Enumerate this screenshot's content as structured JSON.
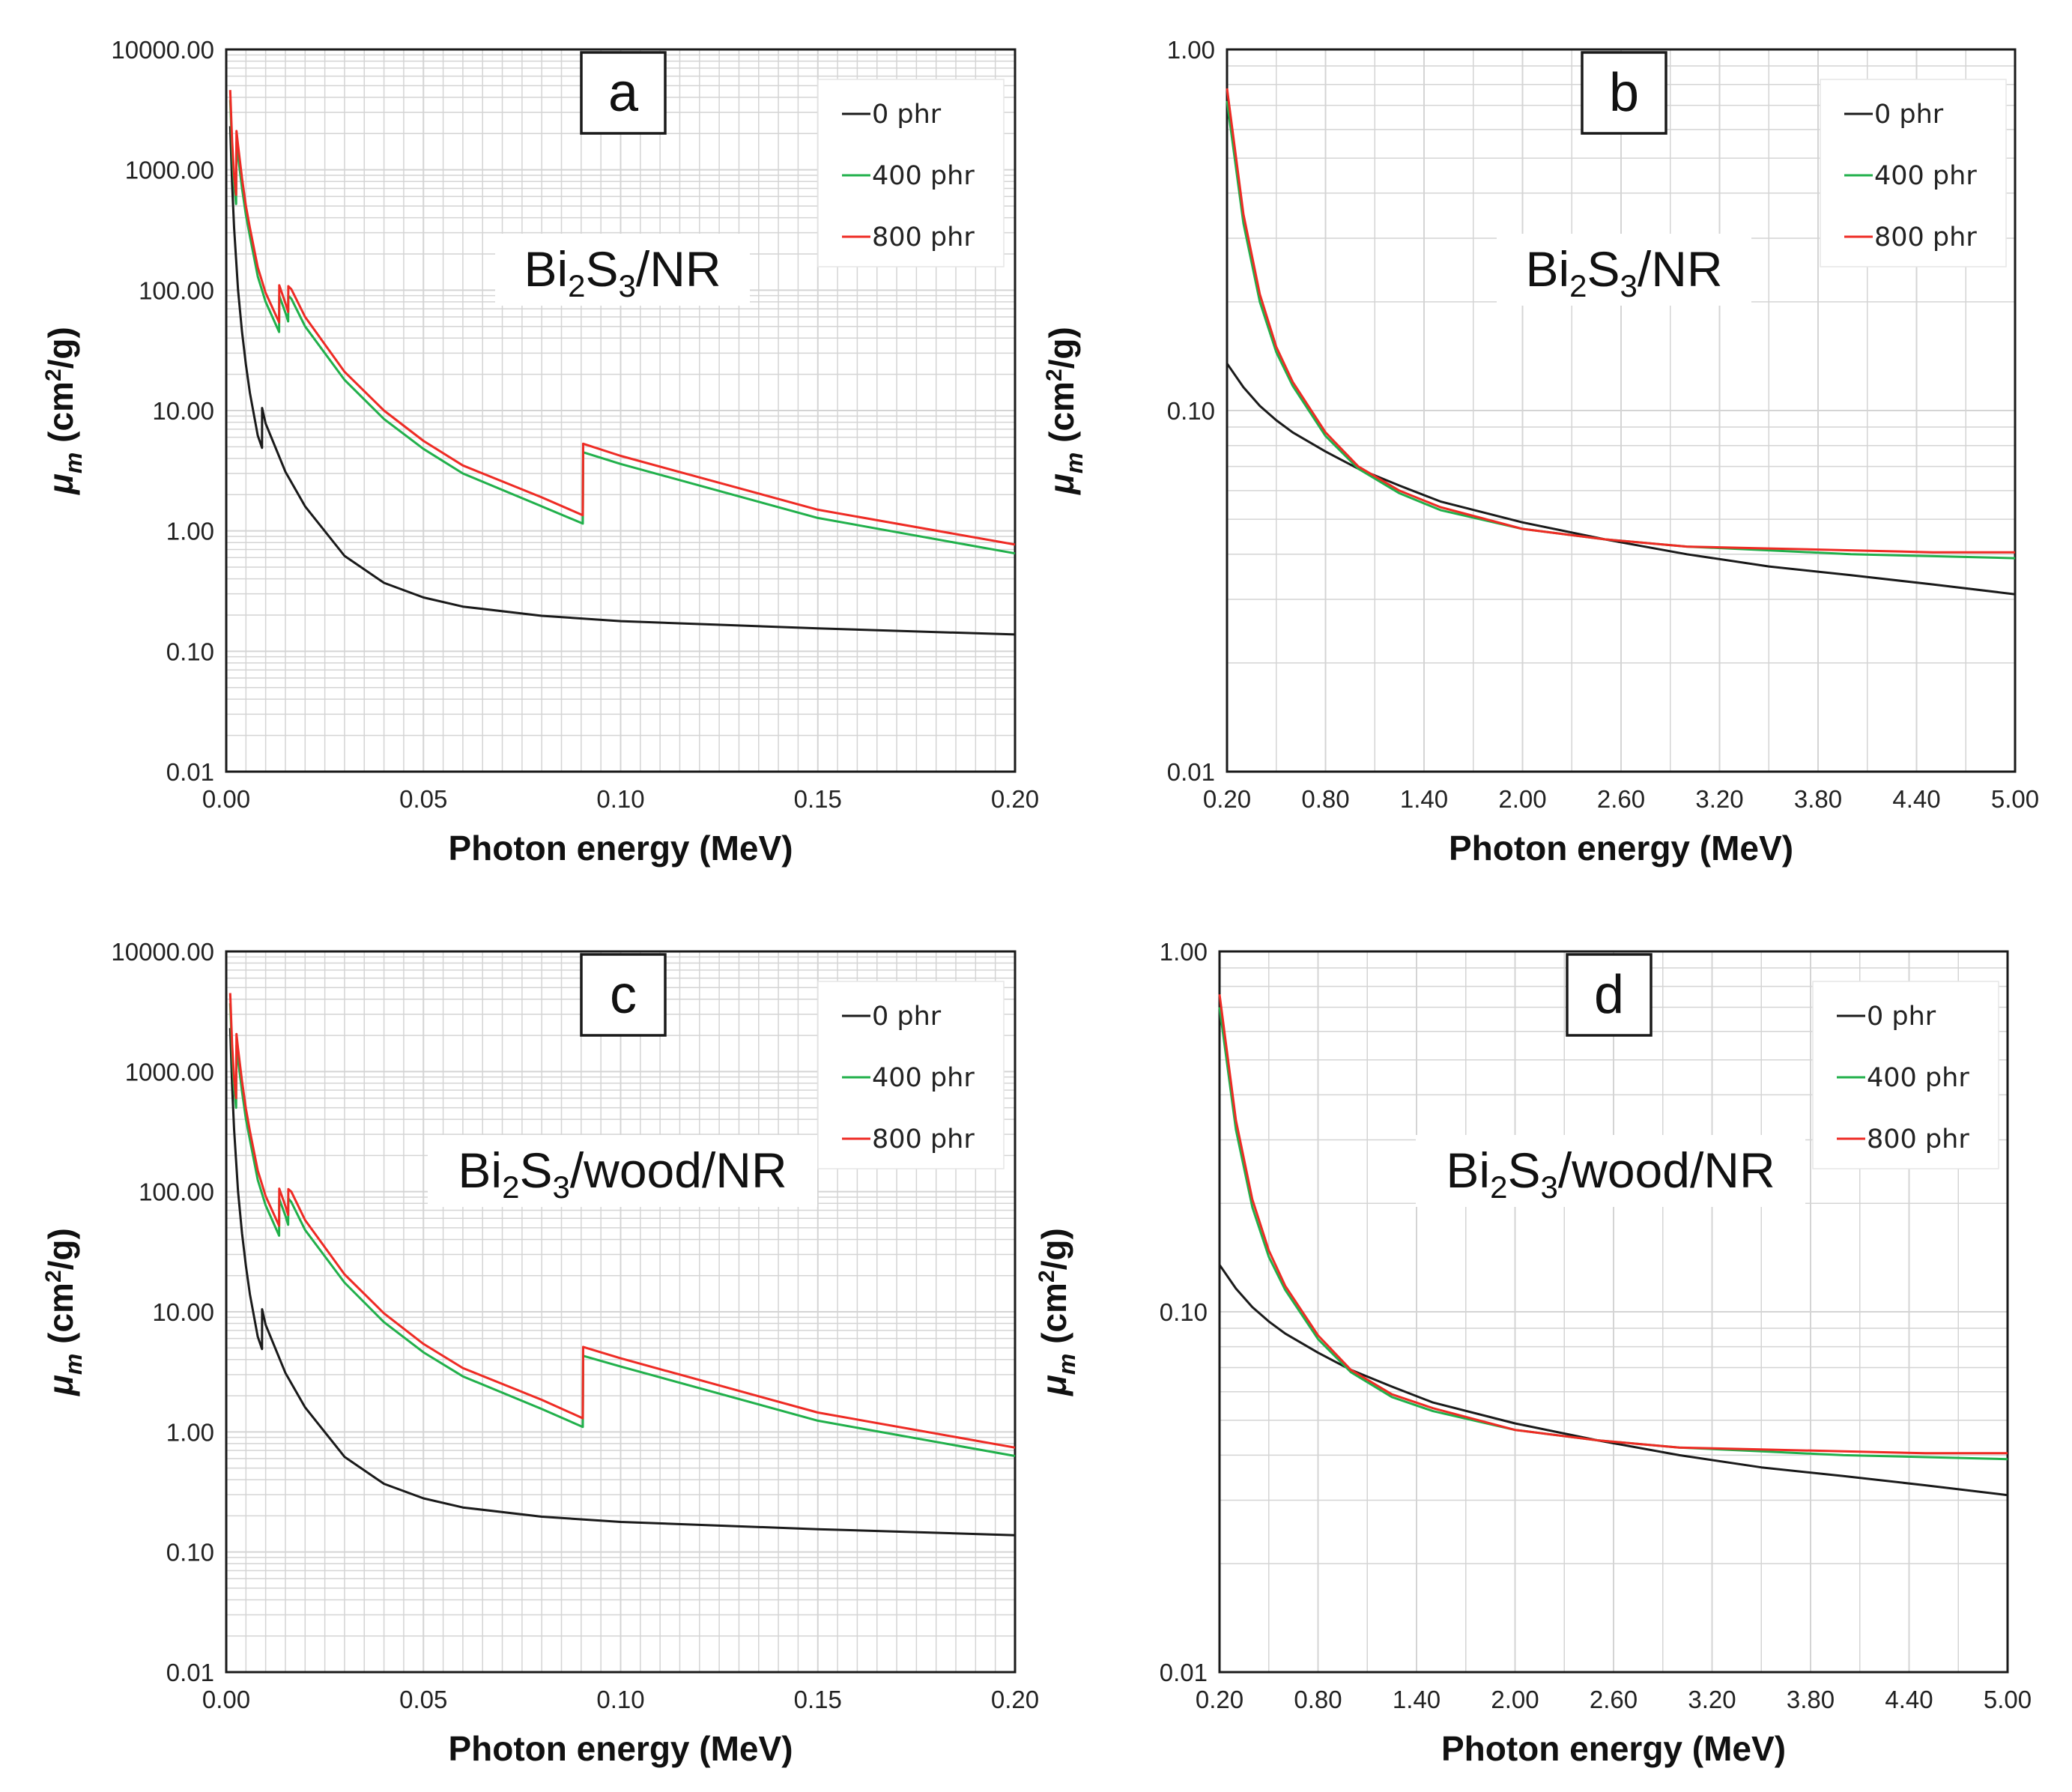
{
  "figure": {
    "y_axis_label_main": "μ",
    "y_axis_label_sub": "m",
    "y_axis_label_unit_pre": " (cm",
    "y_axis_label_unit_sup": "2",
    "y_axis_label_unit_post": "/g)"
  },
  "colors": {
    "phr0": "#1a1a1a",
    "phr400": "#21b04b",
    "phr800": "#ee2b24",
    "grid": "#d4d4d4"
  },
  "chart_data": [
    {
      "panel": "a",
      "type": "line",
      "yscale": "log",
      "material_parts": [
        "Bi",
        "2",
        "S",
        "3",
        "/NR"
      ],
      "xlabel": "Photon energy (MeV)",
      "xlim": [
        0,
        0.2
      ],
      "ylim": [
        0.01,
        10000
      ],
      "xticks": [
        "0.00",
        "0.05",
        "0.10",
        "0.15",
        "0.20"
      ],
      "yticks": [
        "0.01",
        "0.10",
        "1.00",
        "10.00",
        "100.00",
        "1000.00",
        "10000.00"
      ],
      "legend": [
        "0 phr",
        "400 phr",
        "800 phr"
      ],
      "series": [
        {
          "name": "0 phr",
          "color_key": "phr0",
          "x": [
            0.001,
            0.0015,
            0.002,
            0.003,
            0.004,
            0.005,
            0.006,
            0.008,
            0.00907,
            0.0091,
            0.01,
            0.015,
            0.02,
            0.03,
            0.04,
            0.05,
            0.06,
            0.08,
            0.1,
            0.15,
            0.2
          ],
          "y": [
            2300,
            750,
            330,
            100,
            45,
            24,
            14,
            6.2,
            4.9,
            10.5,
            7.8,
            3.1,
            1.6,
            0.62,
            0.37,
            0.28,
            0.235,
            0.197,
            0.178,
            0.155,
            0.138
          ]
        },
        {
          "name": "400 phr",
          "color_key": "phr400",
          "x": [
            0.001,
            0.0015,
            0.002,
            0.0025,
            0.0026,
            0.003,
            0.004,
            0.005,
            0.006,
            0.008,
            0.01,
            0.0134,
            0.01345,
            0.015,
            0.0157,
            0.01575,
            0.0165,
            0.02,
            0.03,
            0.04,
            0.05,
            0.06,
            0.08,
            0.0904,
            0.0905,
            0.1,
            0.15,
            0.2
          ],
          "y": [
            3800,
            1400,
            750,
            520,
            1700,
            1300,
            700,
            420,
            280,
            130,
            80,
            45,
            90,
            65,
            55,
            90,
            85,
            50,
            18,
            8.5,
            4.8,
            3.0,
            1.6,
            1.15,
            4.5,
            3.6,
            1.28,
            0.65
          ]
        },
        {
          "name": "800 phr",
          "color_key": "phr800",
          "x": [
            0.001,
            0.0015,
            0.002,
            0.0025,
            0.0026,
            0.003,
            0.004,
            0.005,
            0.006,
            0.008,
            0.01,
            0.0134,
            0.01345,
            0.015,
            0.0157,
            0.01575,
            0.0165,
            0.02,
            0.03,
            0.04,
            0.05,
            0.06,
            0.08,
            0.0904,
            0.0905,
            0.1,
            0.15,
            0.2
          ],
          "y": [
            4600,
            1700,
            900,
            620,
            2100,
            1600,
            850,
            500,
            330,
            155,
            95,
            54,
            110,
            78,
            66,
            108,
            102,
            60,
            21,
            10,
            5.6,
            3.5,
            1.9,
            1.35,
            5.3,
            4.2,
            1.5,
            0.77
          ]
        }
      ]
    },
    {
      "panel": "b",
      "type": "line",
      "yscale": "log",
      "material_parts": [
        "Bi",
        "2",
        "S",
        "3",
        "/NR"
      ],
      "xlabel": "Photon energy (MeV)",
      "xlim": [
        0.2,
        5.0
      ],
      "ylim": [
        0.01,
        1.0
      ],
      "xticks": [
        "0.20",
        "0.80",
        "1.40",
        "2.00",
        "2.60",
        "3.20",
        "3.80",
        "4.40",
        "5.00"
      ],
      "yticks": [
        "0.01",
        "0.10",
        "1.00"
      ],
      "legend": [
        "0 phr",
        "400 phr",
        "800 phr"
      ],
      "series": [
        {
          "name": "0 phr",
          "color_key": "phr0",
          "x": [
            0.2,
            0.3,
            0.4,
            0.5,
            0.6,
            0.8,
            1.0,
            1.25,
            1.5,
            2.0,
            2.5,
            3.0,
            3.5,
            4.0,
            4.5,
            5.0
          ],
          "y": [
            0.135,
            0.116,
            0.103,
            0.094,
            0.087,
            0.077,
            0.069,
            0.062,
            0.056,
            0.049,
            0.044,
            0.04,
            0.037,
            0.035,
            0.033,
            0.031
          ]
        },
        {
          "name": "400 phr",
          "color_key": "phr400",
          "x": [
            0.2,
            0.3,
            0.4,
            0.5,
            0.6,
            0.8,
            1.0,
            1.25,
            1.5,
            2.0,
            2.5,
            3.0,
            3.5,
            4.0,
            4.5,
            5.0
          ],
          "y": [
            0.72,
            0.33,
            0.2,
            0.145,
            0.117,
            0.085,
            0.069,
            0.059,
            0.053,
            0.047,
            0.044,
            0.042,
            0.041,
            0.04,
            0.0395,
            0.039
          ]
        },
        {
          "name": "800 phr",
          "color_key": "phr800",
          "x": [
            0.2,
            0.3,
            0.4,
            0.5,
            0.6,
            0.8,
            1.0,
            1.25,
            1.5,
            2.0,
            2.5,
            3.0,
            3.5,
            4.0,
            4.5,
            5.0
          ],
          "y": [
            0.78,
            0.35,
            0.21,
            0.15,
            0.12,
            0.087,
            0.07,
            0.06,
            0.054,
            0.047,
            0.044,
            0.042,
            0.0415,
            0.041,
            0.0405,
            0.0405
          ]
        }
      ]
    },
    {
      "panel": "c",
      "type": "line",
      "yscale": "log",
      "material_parts": [
        "Bi",
        "2",
        "S",
        "3",
        "/wood/NR"
      ],
      "xlabel": "Photon energy (MeV)",
      "xlim": [
        0,
        0.2
      ],
      "ylim": [
        0.01,
        10000
      ],
      "xticks": [
        "0.00",
        "0.05",
        "0.10",
        "0.15",
        "0.20"
      ],
      "yticks": [
        "0.01",
        "0.10",
        "1.00",
        "10.00",
        "100.00",
        "1000.00",
        "10000.00"
      ],
      "legend": [
        "0 phr",
        "400 phr",
        "800 phr"
      ],
      "series": [
        {
          "name": "0 phr",
          "color_key": "phr0",
          "x": [
            0.001,
            0.0015,
            0.002,
            0.003,
            0.004,
            0.005,
            0.006,
            0.008,
            0.00907,
            0.0091,
            0.01,
            0.015,
            0.02,
            0.03,
            0.04,
            0.05,
            0.06,
            0.08,
            0.1,
            0.15,
            0.2
          ],
          "y": [
            2300,
            750,
            330,
            100,
            45,
            24,
            14,
            6.2,
            4.9,
            10.5,
            7.8,
            3.1,
            1.6,
            0.62,
            0.37,
            0.28,
            0.235,
            0.197,
            0.178,
            0.155,
            0.138
          ]
        },
        {
          "name": "400 phr",
          "color_key": "phr400",
          "x": [
            0.001,
            0.0015,
            0.002,
            0.0025,
            0.0026,
            0.003,
            0.004,
            0.005,
            0.006,
            0.008,
            0.01,
            0.0134,
            0.01345,
            0.015,
            0.0157,
            0.01575,
            0.0165,
            0.02,
            0.03,
            0.04,
            0.05,
            0.06,
            0.08,
            0.0904,
            0.0905,
            0.1,
            0.15,
            0.2
          ],
          "y": [
            3700,
            1350,
            720,
            500,
            1650,
            1250,
            680,
            400,
            270,
            125,
            77,
            43,
            87,
            63,
            53,
            88,
            82,
            48,
            17.5,
            8.2,
            4.6,
            2.9,
            1.55,
            1.1,
            4.3,
            3.5,
            1.24,
            0.63
          ]
        },
        {
          "name": "800 phr",
          "color_key": "phr800",
          "x": [
            0.001,
            0.0015,
            0.002,
            0.0025,
            0.0026,
            0.003,
            0.004,
            0.005,
            0.006,
            0.008,
            0.01,
            0.0134,
            0.01345,
            0.015,
            0.0157,
            0.01575,
            0.0165,
            0.02,
            0.03,
            0.04,
            0.05,
            0.06,
            0.08,
            0.0904,
            0.0905,
            0.1,
            0.15,
            0.2
          ],
          "y": [
            4500,
            1650,
            880,
            600,
            2050,
            1550,
            830,
            490,
            320,
            150,
            92,
            52,
            106,
            76,
            64,
            105,
            100,
            58,
            20.5,
            9.7,
            5.4,
            3.4,
            1.85,
            1.3,
            5.1,
            4.1,
            1.45,
            0.74
          ]
        }
      ]
    },
    {
      "panel": "d",
      "type": "line",
      "yscale": "log",
      "material_parts": [
        "Bi",
        "2",
        "S",
        "3",
        "/wood/NR"
      ],
      "xlabel": "Photon energy (MeV)",
      "xlim": [
        0.2,
        5.0
      ],
      "ylim": [
        0.01,
        1.0
      ],
      "xticks": [
        "0.20",
        "0.80",
        "1.40",
        "2.00",
        "2.60",
        "3.20",
        "3.80",
        "4.40",
        "5.00"
      ],
      "yticks": [
        "0.01",
        "0.10",
        "1.00"
      ],
      "legend": [
        "0 phr",
        "400 phr",
        "800 phr"
      ],
      "series": [
        {
          "name": "0 phr",
          "color_key": "phr0",
          "x": [
            0.2,
            0.3,
            0.4,
            0.5,
            0.6,
            0.8,
            1.0,
            1.25,
            1.5,
            2.0,
            2.5,
            3.0,
            3.5,
            4.0,
            4.5,
            5.0
          ],
          "y": [
            0.135,
            0.116,
            0.103,
            0.094,
            0.087,
            0.077,
            0.069,
            0.062,
            0.056,
            0.049,
            0.044,
            0.04,
            0.037,
            0.035,
            0.033,
            0.031
          ]
        },
        {
          "name": "400 phr",
          "color_key": "phr400",
          "x": [
            0.2,
            0.3,
            0.4,
            0.5,
            0.6,
            0.8,
            1.0,
            1.25,
            1.5,
            2.0,
            2.5,
            3.0,
            3.5,
            4.0,
            4.5,
            5.0
          ],
          "y": [
            0.7,
            0.32,
            0.195,
            0.142,
            0.115,
            0.084,
            0.068,
            0.058,
            0.053,
            0.047,
            0.044,
            0.042,
            0.041,
            0.04,
            0.0395,
            0.039
          ]
        },
        {
          "name": "800 phr",
          "color_key": "phr800",
          "x": [
            0.2,
            0.3,
            0.4,
            0.5,
            0.6,
            0.8,
            1.0,
            1.25,
            1.5,
            2.0,
            2.5,
            3.0,
            3.5,
            4.0,
            4.5,
            5.0
          ],
          "y": [
            0.76,
            0.34,
            0.205,
            0.148,
            0.118,
            0.086,
            0.069,
            0.059,
            0.054,
            0.047,
            0.044,
            0.042,
            0.0415,
            0.041,
            0.0405,
            0.0405
          ]
        }
      ]
    }
  ]
}
